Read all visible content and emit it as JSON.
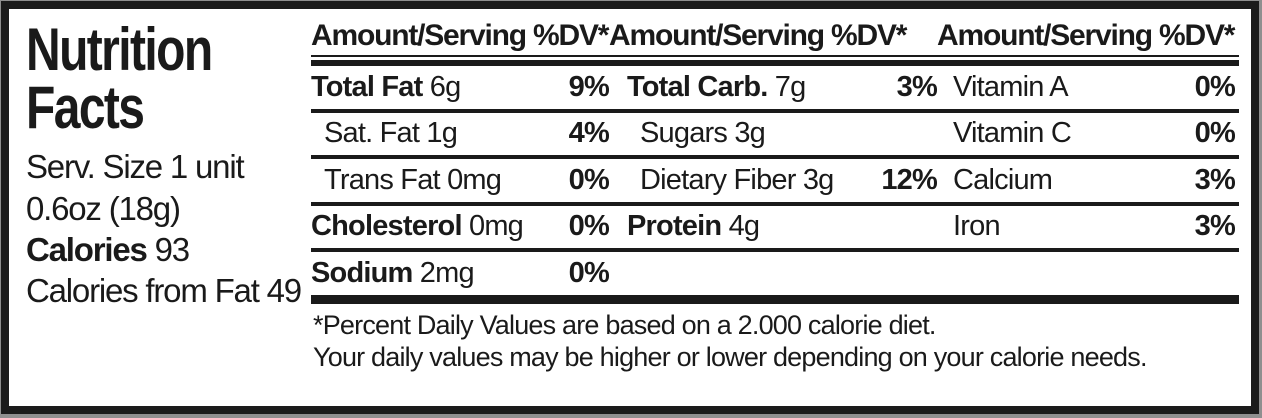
{
  "label": {
    "title_line1": "Nutrition",
    "title_line2": "Facts",
    "serving_size_line1": "Serv. Size 1 unit",
    "serving_size_line2": "0.6oz (18g)",
    "calories_label": "Calories",
    "calories_value": "93",
    "calories_from_fat_label": "Calories from Fat",
    "calories_from_fat_value": "49"
  },
  "table": {
    "column_headers": {
      "amount": "Amount/Serving",
      "dv": "%DV*"
    },
    "rows": [
      {
        "cells": [
          {
            "name": "Total Fat",
            "value": "6g",
            "dv": "9%",
            "bold": true,
            "indent": false
          },
          {
            "name": "Total Carb.",
            "value": "7g",
            "dv": "3%",
            "bold": true,
            "indent": false
          },
          {
            "name": "Vitamin A",
            "value": "",
            "dv": "0%",
            "bold": false,
            "indent": false
          }
        ]
      },
      {
        "cells": [
          {
            "name": "Sat. Fat",
            "value": "1g",
            "dv": "4%",
            "bold": false,
            "indent": true
          },
          {
            "name": "Sugars",
            "value": "3g",
            "dv": "",
            "bold": false,
            "indent": true
          },
          {
            "name": "Vitamin C",
            "value": "",
            "dv": "0%",
            "bold": false,
            "indent": false
          }
        ]
      },
      {
        "cells": [
          {
            "name": "Trans Fat",
            "value": "0mg",
            "dv": "0%",
            "bold": false,
            "indent": true
          },
          {
            "name": "Dietary Fiber",
            "value": "3g",
            "dv": "12%",
            "bold": false,
            "indent": true
          },
          {
            "name": "Calcium",
            "value": "",
            "dv": "3%",
            "bold": false,
            "indent": false
          }
        ]
      },
      {
        "cells": [
          {
            "name": "Cholesterol",
            "value": "0mg",
            "dv": "0%",
            "bold": true,
            "indent": false
          },
          {
            "name": "Protein",
            "value": "4g",
            "dv": "",
            "bold": true,
            "indent": false
          },
          {
            "name": "Iron",
            "value": "",
            "dv": "3%",
            "bold": false,
            "indent": false
          }
        ]
      },
      {
        "cells": [
          {
            "name": "Sodium",
            "value": "2mg",
            "dv": "0%",
            "bold": true,
            "indent": false
          },
          null,
          null
        ]
      }
    ]
  },
  "footnote": {
    "line1": "*Percent Daily Values are based on a 2.000 calorie diet.",
    "line2": "Your daily values may be higher or lower depending on your calorie needs."
  },
  "colors": {
    "text": "#1a1a1a",
    "background": "#ffffff",
    "frame": "#1b1b1b"
  }
}
